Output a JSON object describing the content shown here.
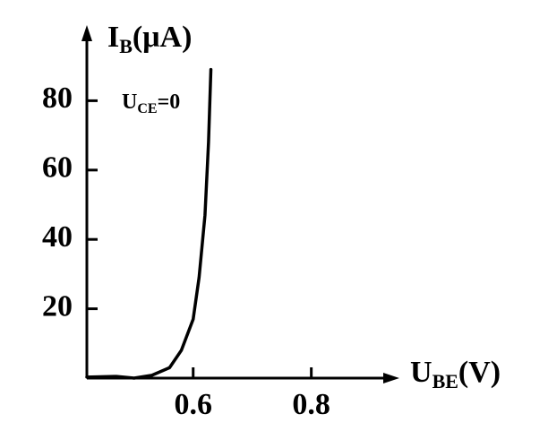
{
  "chart_data": {
    "type": "line",
    "ylabel": [
      "I",
      "B",
      "(μA)"
    ],
    "xlabel": [
      "U",
      "BE",
      "(V)"
    ],
    "annotation": [
      "U",
      "CE",
      "=0"
    ],
    "x": [
      0.42,
      0.47,
      0.5,
      0.53,
      0.56,
      0.58,
      0.6,
      0.61,
      0.62,
      0.626,
      0.63
    ],
    "series": [
      {
        "color": "#000000",
        "values": [
          0.3,
          0.5,
          0,
          0.8,
          3,
          8,
          17,
          29,
          47,
          68,
          89
        ]
      }
    ],
    "xlim": [
      0.42,
      0.94
    ],
    "xticks": [
      0.6,
      0.8
    ],
    "ylim": [
      0,
      100
    ],
    "yticks": [
      20,
      40,
      60,
      80
    ]
  }
}
